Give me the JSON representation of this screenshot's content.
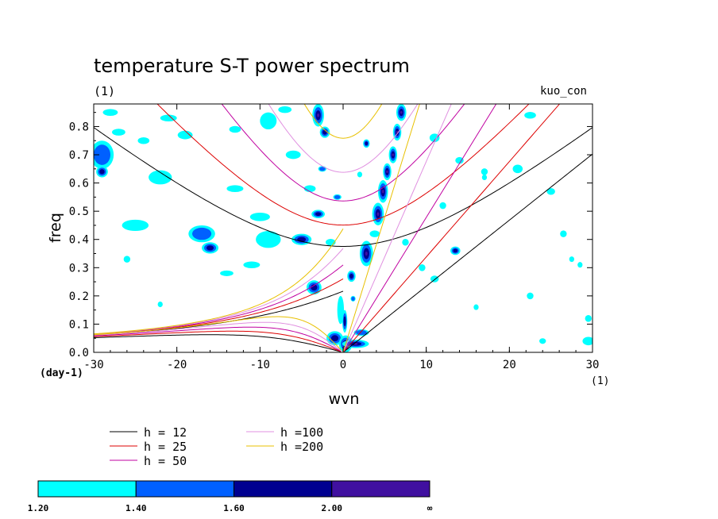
{
  "chart_data": {
    "type": "contour",
    "title": "temperature S-T power spectrum",
    "subtitle_left": "(1)",
    "subtitle_right": "kuo_con",
    "xlabel": "wvn",
    "ylabel": "freq",
    "x_unit": "(1)",
    "y_unit": "(day-1)",
    "xlim": [
      -30,
      30
    ],
    "ylim": [
      0,
      0.88
    ],
    "x_ticks": [
      -30,
      -20,
      -10,
      0,
      10,
      20,
      30
    ],
    "x_tick_labels": [
      "-30",
      "-20",
      "-10",
      "0",
      "10",
      "20",
      "30"
    ],
    "y_ticks": [
      0,
      0.1,
      0.2,
      0.3,
      0.4,
      0.5,
      0.6,
      0.7,
      0.8
    ],
    "y_tick_labels": [
      "0.0",
      "0.1",
      "0.2",
      "0.3",
      "0.4",
      "0.5",
      "0.6",
      "0.7",
      "0.8"
    ],
    "dispersion_curves": [
      {
        "label": "h = 12",
        "h": 12,
        "color": "#000000"
      },
      {
        "label": "h = 25",
        "h": 25,
        "color": "#dd0000"
      },
      {
        "label": "h = 50",
        "h": 50,
        "color": "#c000a0"
      },
      {
        "label": "h =100",
        "h": 100,
        "color": "#e090e0"
      },
      {
        "label": "h =200",
        "h": 200,
        "color": "#e8c000"
      }
    ],
    "contour_levels": [
      {
        "from": "1.20",
        "color": "#00ffff"
      },
      {
        "from": "1.40",
        "color": "#0060ff"
      },
      {
        "from": "1.60",
        "color": "#000090"
      },
      {
        "from": "2.00",
        "color": "#4010a0"
      }
    ],
    "colorbar_labels": [
      "1.20",
      "1.40",
      "1.60",
      "2.00",
      "∞"
    ],
    "blobs": [
      {
        "x": -29,
        "y": 0.7,
        "rx": 1.4,
        "ry": 0.05,
        "level": 2
      },
      {
        "x": -29,
        "y": 0.64,
        "rx": 0.7,
        "ry": 0.02,
        "level": 3
      },
      {
        "x": -27,
        "y": 0.78,
        "rx": 0.8,
        "ry": 0.012,
        "level": 1
      },
      {
        "x": -28,
        "y": 0.85,
        "rx": 0.9,
        "ry": 0.012,
        "level": 1
      },
      {
        "x": -22,
        "y": 0.62,
        "rx": 1.4,
        "ry": 0.025,
        "level": 1
      },
      {
        "x": -24,
        "y": 0.75,
        "rx": 0.7,
        "ry": 0.012,
        "level": 1
      },
      {
        "x": -19,
        "y": 0.77,
        "rx": 0.9,
        "ry": 0.015,
        "level": 1
      },
      {
        "x": -21,
        "y": 0.83,
        "rx": 1.0,
        "ry": 0.012,
        "level": 1
      },
      {
        "x": -25,
        "y": 0.45,
        "rx": 1.6,
        "ry": 0.02,
        "level": 1
      },
      {
        "x": -17,
        "y": 0.42,
        "rx": 1.6,
        "ry": 0.03,
        "level": 2
      },
      {
        "x": -16,
        "y": 0.37,
        "rx": 1.0,
        "ry": 0.02,
        "level": 3
      },
      {
        "x": -13,
        "y": 0.58,
        "rx": 1.0,
        "ry": 0.012,
        "level": 1
      },
      {
        "x": -10,
        "y": 0.48,
        "rx": 1.2,
        "ry": 0.015,
        "level": 1
      },
      {
        "x": -9,
        "y": 0.4,
        "rx": 1.5,
        "ry": 0.03,
        "level": 1
      },
      {
        "x": -11,
        "y": 0.31,
        "rx": 1.0,
        "ry": 0.012,
        "level": 1
      },
      {
        "x": -14,
        "y": 0.28,
        "rx": 0.8,
        "ry": 0.01,
        "level": 1
      },
      {
        "x": -9,
        "y": 0.82,
        "rx": 1.0,
        "ry": 0.03,
        "level": 1
      },
      {
        "x": -13,
        "y": 0.79,
        "rx": 0.7,
        "ry": 0.012,
        "level": 1
      },
      {
        "x": -7,
        "y": 0.86,
        "rx": 0.8,
        "ry": 0.012,
        "level": 1
      },
      {
        "x": -6,
        "y": 0.7,
        "rx": 0.9,
        "ry": 0.015,
        "level": 1
      },
      {
        "x": -5,
        "y": 0.4,
        "rx": 1.2,
        "ry": 0.02,
        "level": 3
      },
      {
        "x": -3,
        "y": 0.49,
        "rx": 0.8,
        "ry": 0.015,
        "level": 3
      },
      {
        "x": -3.5,
        "y": 0.23,
        "rx": 0.9,
        "ry": 0.025,
        "level": 3
      },
      {
        "x": -4,
        "y": 0.58,
        "rx": 0.7,
        "ry": 0.012,
        "level": 1
      },
      {
        "x": -2.5,
        "y": 0.65,
        "rx": 0.5,
        "ry": 0.01,
        "level": 2
      },
      {
        "x": -3,
        "y": 0.84,
        "rx": 0.7,
        "ry": 0.04,
        "level": 4
      },
      {
        "x": -2.2,
        "y": 0.78,
        "rx": 0.6,
        "ry": 0.02,
        "level": 3
      },
      {
        "x": -1.5,
        "y": 0.39,
        "rx": 0.6,
        "ry": 0.012,
        "level": 1
      },
      {
        "x": -1,
        "y": 0.05,
        "rx": 1.0,
        "ry": 0.025,
        "level": 3
      },
      {
        "x": -0.7,
        "y": 0.55,
        "rx": 0.5,
        "ry": 0.01,
        "level": 2
      },
      {
        "x": -0.3,
        "y": 0.15,
        "rx": 0.4,
        "ry": 0.05,
        "level": 1
      },
      {
        "x": 0.3,
        "y": 0.03,
        "rx": 0.8,
        "ry": 0.03,
        "level": 4
      },
      {
        "x": 1.5,
        "y": 0.03,
        "rx": 1.6,
        "ry": 0.015,
        "level": 4
      },
      {
        "x": 2.2,
        "y": 0.07,
        "rx": 0.9,
        "ry": 0.012,
        "level": 2
      },
      {
        "x": 0.2,
        "y": 0.11,
        "rx": 0.3,
        "ry": 0.04,
        "level": 3
      },
      {
        "x": 1,
        "y": 0.27,
        "rx": 0.5,
        "ry": 0.02,
        "level": 3
      },
      {
        "x": 1.2,
        "y": 0.19,
        "rx": 0.3,
        "ry": 0.01,
        "level": 2
      },
      {
        "x": 2.8,
        "y": 0.35,
        "rx": 0.8,
        "ry": 0.045,
        "level": 4
      },
      {
        "x": 3.8,
        "y": 0.42,
        "rx": 0.6,
        "ry": 0.012,
        "level": 1
      },
      {
        "x": 4.2,
        "y": 0.49,
        "rx": 0.7,
        "ry": 0.04,
        "level": 4
      },
      {
        "x": 4.8,
        "y": 0.57,
        "rx": 0.6,
        "ry": 0.04,
        "level": 4
      },
      {
        "x": 5.3,
        "y": 0.64,
        "rx": 0.5,
        "ry": 0.03,
        "level": 4
      },
      {
        "x": 6,
        "y": 0.7,
        "rx": 0.5,
        "ry": 0.03,
        "level": 4
      },
      {
        "x": 6.5,
        "y": 0.78,
        "rx": 0.5,
        "ry": 0.03,
        "level": 4
      },
      {
        "x": 7,
        "y": 0.85,
        "rx": 0.6,
        "ry": 0.03,
        "level": 4
      },
      {
        "x": 2.8,
        "y": 0.74,
        "rx": 0.4,
        "ry": 0.015,
        "level": 3
      },
      {
        "x": 2,
        "y": 0.63,
        "rx": 0.3,
        "ry": 0.01,
        "level": 1
      },
      {
        "x": 7.5,
        "y": 0.39,
        "rx": 0.4,
        "ry": 0.012,
        "level": 1
      },
      {
        "x": 9.5,
        "y": 0.3,
        "rx": 0.4,
        "ry": 0.012,
        "level": 1
      },
      {
        "x": 11,
        "y": 0.26,
        "rx": 0.5,
        "ry": 0.012,
        "level": 1
      },
      {
        "x": 13.5,
        "y": 0.36,
        "rx": 0.6,
        "ry": 0.015,
        "level": 3
      },
      {
        "x": 12,
        "y": 0.52,
        "rx": 0.4,
        "ry": 0.012,
        "level": 1
      },
      {
        "x": 11,
        "y": 0.76,
        "rx": 0.6,
        "ry": 0.015,
        "level": 1
      },
      {
        "x": 14,
        "y": 0.68,
        "rx": 0.5,
        "ry": 0.012,
        "level": 1
      },
      {
        "x": 17,
        "y": 0.64,
        "rx": 0.4,
        "ry": 0.012,
        "level": 1
      },
      {
        "x": 17,
        "y": 0.62,
        "rx": 0.3,
        "ry": 0.01,
        "level": 1
      },
      {
        "x": 16,
        "y": 0.16,
        "rx": 0.3,
        "ry": 0.01,
        "level": 1
      },
      {
        "x": 21,
        "y": 0.65,
        "rx": 0.6,
        "ry": 0.015,
        "level": 1
      },
      {
        "x": 22.5,
        "y": 0.84,
        "rx": 0.7,
        "ry": 0.012,
        "level": 1
      },
      {
        "x": 25,
        "y": 0.57,
        "rx": 0.5,
        "ry": 0.012,
        "level": 1
      },
      {
        "x": 26.5,
        "y": 0.42,
        "rx": 0.4,
        "ry": 0.012,
        "level": 1
      },
      {
        "x": 27.5,
        "y": 0.33,
        "rx": 0.3,
        "ry": 0.01,
        "level": 1
      },
      {
        "x": 22.5,
        "y": 0.2,
        "rx": 0.4,
        "ry": 0.012,
        "level": 1
      },
      {
        "x": 28.5,
        "y": 0.31,
        "rx": 0.3,
        "ry": 0.01,
        "level": 1
      },
      {
        "x": 29.5,
        "y": 0.04,
        "rx": 0.7,
        "ry": 0.015,
        "level": 1
      },
      {
        "x": 29.5,
        "y": 0.12,
        "rx": 0.4,
        "ry": 0.012,
        "level": 1
      },
      {
        "x": 24,
        "y": 0.04,
        "rx": 0.4,
        "ry": 0.01,
        "level": 1
      },
      {
        "x": -26,
        "y": 0.33,
        "rx": 0.4,
        "ry": 0.012,
        "level": 1
      },
      {
        "x": -22,
        "y": 0.17,
        "rx": 0.3,
        "ry": 0.01,
        "level": 1
      }
    ]
  }
}
